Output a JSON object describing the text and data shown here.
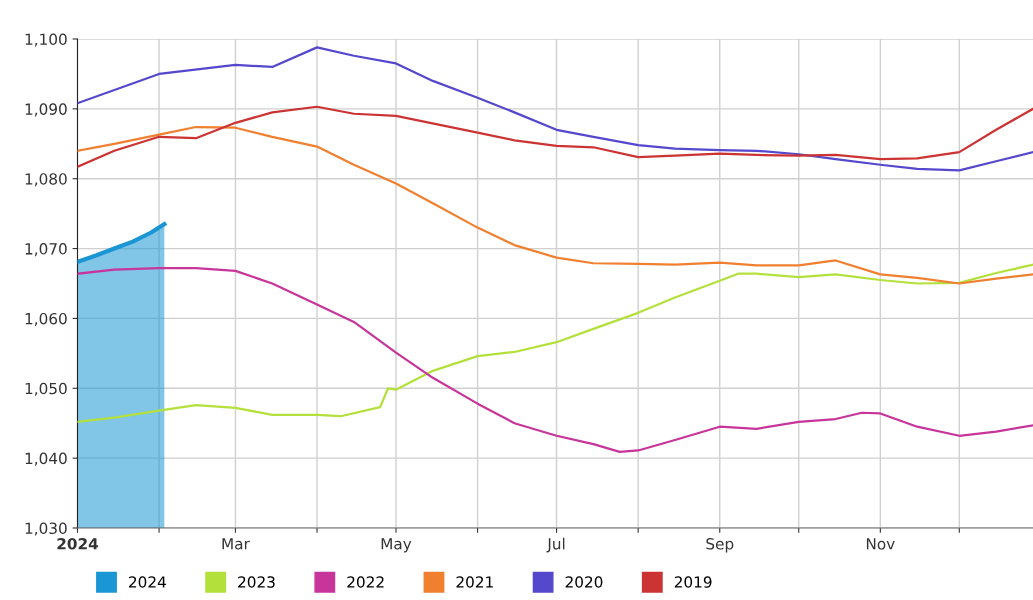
{
  "chart_data": {
    "type": "line",
    "ylim": [
      1030,
      1100
    ],
    "yticks": [
      {
        "value": 1030,
        "label": "1,030"
      },
      {
        "value": 1040,
        "label": "1,040"
      },
      {
        "value": 1050,
        "label": "1,050"
      },
      {
        "value": 1060,
        "label": "1,060"
      },
      {
        "value": 1070,
        "label": "1,070"
      },
      {
        "value": 1080,
        "label": "1,080"
      },
      {
        "value": 1090,
        "label": "1,090"
      },
      {
        "value": 1100,
        "label": "1,100"
      }
    ],
    "xlim": [
      "2024-01-01",
      "2024-12-29"
    ],
    "xticks": [
      {
        "value": "2024-01-01",
        "label": "2024"
      },
      {
        "value": "2024-02-01",
        "label": null
      },
      {
        "value": "2024-03-01",
        "label": "Mar"
      },
      {
        "value": "2024-04-01",
        "label": null
      },
      {
        "value": "2024-05-01",
        "label": "May"
      },
      {
        "value": "2024-06-01",
        "label": null
      },
      {
        "value": "2024-07-01",
        "label": "Jul"
      },
      {
        "value": "2024-08-01",
        "label": null
      },
      {
        "value": "2024-09-01",
        "label": "Sep"
      },
      {
        "value": "2024-10-01",
        "label": null
      },
      {
        "value": "2024-11-01",
        "label": "Nov"
      },
      {
        "value": "2024-12-01",
        "label": null
      }
    ],
    "grid": true,
    "legend": "bottom",
    "series": [
      {
        "name": "2024",
        "type": "area",
        "color": "#1a96d4",
        "x": [
          "2024-01-01",
          "2024-01-08",
          "2024-01-15",
          "2024-01-22",
          "2024-01-29",
          "2024-02-03"
        ],
        "values": [
          1068.1,
          1069,
          1070,
          1071,
          1072.3,
          1073.5
        ]
      },
      {
        "name": "2023",
        "color": "#b4e03c",
        "x": [
          "2024-01-01",
          "2024-01-15",
          "2024-02-01",
          "2024-02-15",
          "2024-03-01",
          "2024-03-15",
          "2024-04-01",
          "2024-04-10",
          "2024-04-25",
          "2024-04-28",
          "2024-05-01",
          "2024-05-15",
          "2024-06-01",
          "2024-06-15",
          "2024-07-01",
          "2024-07-15",
          "2024-08-01",
          "2024-08-15",
          "2024-09-01",
          "2024-09-08",
          "2024-09-15",
          "2024-10-01",
          "2024-10-15",
          "2024-11-01",
          "2024-11-15",
          "2024-12-01",
          "2024-12-15",
          "2024-12-29"
        ],
        "values": [
          1045.2,
          1045.8,
          1046.8,
          1047.6,
          1047.2,
          1046.2,
          1046.2,
          1046,
          1047.3,
          1050,
          1049.8,
          1052.5,
          1054.6,
          1055.2,
          1056.6,
          1058.5,
          1060.8,
          1063,
          1065.4,
          1066.4,
          1066.4,
          1065.9,
          1066.3,
          1065.5,
          1065,
          1065.1,
          1066.5,
          1067.7
        ]
      },
      {
        "name": "2022",
        "color": "#c8359a",
        "x": [
          "2024-01-01",
          "2024-01-15",
          "2024-02-01",
          "2024-02-15",
          "2024-03-01",
          "2024-03-15",
          "2024-04-01",
          "2024-04-15",
          "2024-05-01",
          "2024-05-15",
          "2024-06-01",
          "2024-06-15",
          "2024-07-01",
          "2024-07-15",
          "2024-07-25",
          "2024-08-01",
          "2024-08-15",
          "2024-09-01",
          "2024-09-15",
          "2024-10-01",
          "2024-10-15",
          "2024-10-25",
          "2024-11-01",
          "2024-11-15",
          "2024-12-01",
          "2024-12-15",
          "2024-12-29"
        ],
        "values": [
          1066.4,
          1067,
          1067.2,
          1067.2,
          1066.8,
          1065,
          1062,
          1059.5,
          1055.1,
          1051.5,
          1047.8,
          1045,
          1043.2,
          1042,
          1040.9,
          1041.1,
          1042.6,
          1044.5,
          1044.2,
          1045.2,
          1045.6,
          1046.5,
          1046.4,
          1044.5,
          1043.2,
          1043.8,
          1044.7
        ]
      },
      {
        "name": "2021",
        "color": "#f08030",
        "x": [
          "2024-01-01",
          "2024-01-15",
          "2024-02-01",
          "2024-02-15",
          "2024-03-01",
          "2024-03-15",
          "2024-04-01",
          "2024-04-15",
          "2024-05-01",
          "2024-05-15",
          "2024-06-01",
          "2024-06-15",
          "2024-07-01",
          "2024-07-15",
          "2024-08-01",
          "2024-08-15",
          "2024-09-01",
          "2024-09-15",
          "2024-10-01",
          "2024-10-15",
          "2024-11-01",
          "2024-11-15",
          "2024-12-01",
          "2024-12-15",
          "2024-12-29"
        ],
        "values": [
          1084,
          1085,
          1086.3,
          1087.4,
          1087.3,
          1086,
          1084.6,
          1082,
          1079.3,
          1076.5,
          1073,
          1070.5,
          1068.7,
          1067.9,
          1067.8,
          1067.7,
          1068,
          1067.6,
          1067.6,
          1068.3,
          1066.3,
          1065.8,
          1065,
          1065.7,
          1066.3
        ]
      },
      {
        "name": "2020",
        "color": "#5548cc",
        "x": [
          "2024-01-01",
          "2024-02-01",
          "2024-03-01",
          "2024-03-15",
          "2024-04-01",
          "2024-04-15",
          "2024-05-01",
          "2024-05-15",
          "2024-06-01",
          "2024-06-15",
          "2024-07-01",
          "2024-07-15",
          "2024-08-01",
          "2024-08-15",
          "2024-09-01",
          "2024-09-15",
          "2024-10-01",
          "2024-10-15",
          "2024-11-01",
          "2024-11-15",
          "2024-12-01",
          "2024-12-15",
          "2024-12-29"
        ],
        "values": [
          1090.8,
          1095,
          1096.3,
          1096,
          1098.8,
          1097.6,
          1096.5,
          1094,
          1091.6,
          1089.5,
          1087,
          1086,
          1084.8,
          1084.3,
          1084.1,
          1084,
          1083.5,
          1082.8,
          1082,
          1081.4,
          1081.2,
          1082.5,
          1083.8
        ]
      },
      {
        "name": "2019",
        "color": "#cc3333",
        "x": [
          "2024-01-01",
          "2024-01-15",
          "2024-02-01",
          "2024-02-15",
          "2024-03-01",
          "2024-03-15",
          "2024-04-01",
          "2024-04-15",
          "2024-05-01",
          "2024-06-01",
          "2024-06-15",
          "2024-07-01",
          "2024-07-15",
          "2024-08-01",
          "2024-08-15",
          "2024-09-01",
          "2024-09-15",
          "2024-10-01",
          "2024-10-15",
          "2024-11-01",
          "2024-11-15",
          "2024-12-01",
          "2024-12-15",
          "2024-12-29"
        ],
        "values": [
          1081.7,
          1084,
          1086,
          1085.8,
          1088,
          1089.5,
          1090.3,
          1089.3,
          1089,
          1086.6,
          1085.5,
          1084.7,
          1084.5,
          1083.1,
          1083.3,
          1083.6,
          1083.4,
          1083.3,
          1083.4,
          1082.8,
          1082.9,
          1083.8,
          1087,
          1090
        ]
      }
    ]
  }
}
